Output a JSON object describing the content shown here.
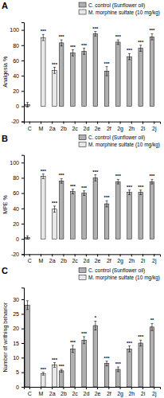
{
  "chart_data": [
    {
      "type": "bar",
      "title": "A",
      "ylabel": "Analgesia %",
      "categories": [
        "C",
        "M",
        "2a",
        "2b",
        "2c",
        "2d",
        "2e",
        "2f",
        "2g",
        "2h",
        "2i",
        "2j"
      ],
      "series": [
        {
          "name": "C. control (Sunflower oil)",
          "color": "#b0b0b0",
          "values": [
            2,
            null,
            null,
            83,
            70,
            72,
            95,
            46,
            84,
            65,
            76,
            91
          ],
          "errors": [
            3,
            null,
            null,
            4,
            4,
            4,
            3,
            6,
            3,
            4,
            4,
            4
          ],
          "annotations": [
            null,
            null,
            null,
            "***",
            "***",
            "***",
            "***",
            "***",
            "***",
            "***",
            "***",
            "***"
          ]
        },
        {
          "name": "M. morphine sulfate (10 mg/kg)",
          "color": "#e8e8e8",
          "values": [
            null,
            90,
            47,
            null,
            null,
            null,
            null,
            null,
            null,
            null,
            null,
            null
          ],
          "errors": [
            null,
            4,
            4,
            null,
            null,
            null,
            null,
            null,
            null,
            null,
            null,
            null
          ],
          "annotations": [
            null,
            "***",
            "***",
            null,
            null,
            null,
            null,
            null,
            null,
            null,
            null,
            null
          ]
        }
      ],
      "ylim": [
        -20,
        110
      ],
      "yticks": [
        -20,
        0,
        20,
        40,
        60,
        80,
        100
      ],
      "grid": false,
      "legend": "upper right"
    },
    {
      "type": "bar",
      "title": "B",
      "ylabel": "MPE %",
      "categories": [
        "C",
        "M",
        "2a",
        "2b",
        "2c",
        "2d",
        "2e",
        "2f",
        "2g",
        "2h",
        "2i",
        "2j"
      ],
      "series": [
        {
          "name": "C. control (Sunflower oil)",
          "color": "#b0b0b0",
          "values": [
            2,
            null,
            null,
            76,
            62,
            60,
            80,
            46,
            75,
            61,
            61,
            75
          ],
          "errors": [
            2,
            null,
            null,
            3,
            3,
            3,
            4,
            4,
            3,
            3,
            3,
            3
          ],
          "annotations": [
            null,
            null,
            null,
            "***",
            "***",
            "***",
            "***",
            "***",
            "***",
            "***",
            "***",
            "***"
          ]
        },
        {
          "name": "M. morphine sulfate (10 mg/kg)",
          "color": "#e8e8e8",
          "values": [
            null,
            82,
            39,
            null,
            null,
            null,
            null,
            null,
            null,
            null,
            null,
            null
          ],
          "errors": [
            null,
            3,
            4,
            null,
            null,
            null,
            null,
            null,
            null,
            null,
            null,
            null
          ],
          "annotations": [
            null,
            "***",
            "***",
            null,
            null,
            null,
            null,
            null,
            null,
            null,
            null,
            null
          ]
        }
      ],
      "ylim": [
        -20,
        110
      ],
      "yticks": [
        -20,
        0,
        20,
        40,
        60,
        80,
        100
      ],
      "grid": false,
      "legend": "upper right"
    },
    {
      "type": "bar",
      "title": "C",
      "ylabel": "Number of writhing behavior",
      "categories": [
        "C",
        "M",
        "2a",
        "2b",
        "2c",
        "2d",
        "2e",
        "2f",
        "2g",
        "2h",
        "2i",
        "2j"
      ],
      "series": [
        {
          "name": "C. control (Sunflower oil)",
          "color": "#b0b0b0",
          "values": [
            28,
            null,
            null,
            5.5,
            13,
            16,
            21,
            8,
            6,
            13,
            15,
            20.5
          ],
          "errors": [
            1.5,
            null,
            null,
            0.5,
            1.2,
            1.2,
            1.5,
            0.8,
            0.8,
            1.0,
            1.0,
            1.2
          ],
          "annotations": [
            null,
            null,
            null,
            "***",
            "***",
            "***",
            "*",
            "***",
            "***",
            "***",
            "***",
            "**"
          ]
        },
        {
          "name": "M. morphine sulfate (10 mg/kg)",
          "color": "#e8e8e8",
          "values": [
            null,
            4.5,
            7.5,
            null,
            null,
            null,
            null,
            null,
            null,
            null,
            null,
            null
          ],
          "errors": [
            null,
            0.5,
            0.8,
            null,
            null,
            null,
            null,
            null,
            null,
            null,
            null,
            null
          ],
          "annotations": [
            null,
            "***",
            "***",
            null,
            null,
            null,
            null,
            null,
            null,
            null,
            null,
            null
          ]
        }
      ],
      "ylim": [
        0,
        34
      ],
      "yticks": [
        0,
        5,
        10,
        15,
        20,
        25,
        30
      ],
      "grid": false,
      "legend": "upper right"
    }
  ]
}
